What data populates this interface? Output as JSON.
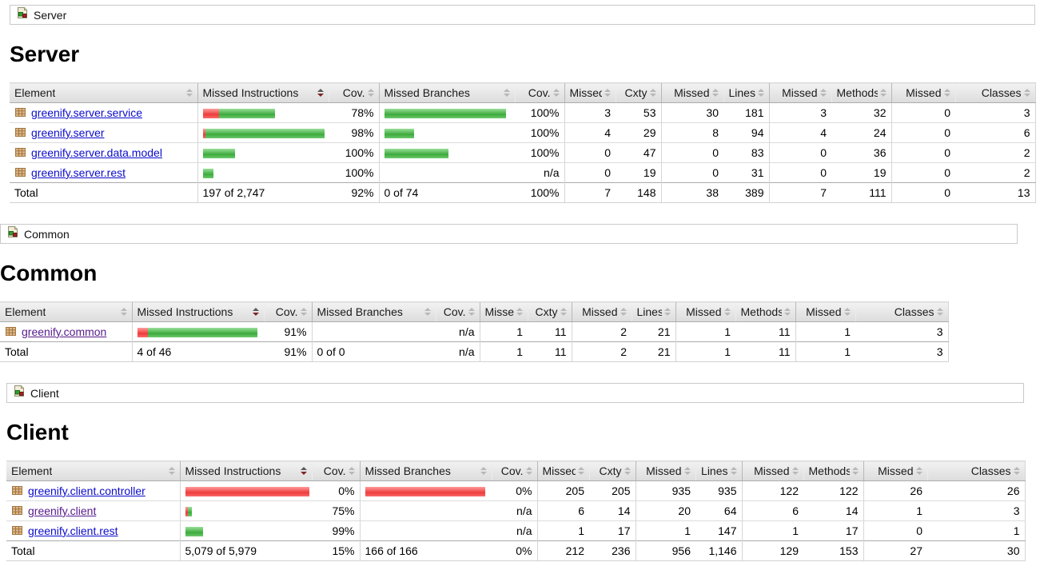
{
  "colors": {
    "covered_green": "#3dab3d",
    "missed_red": "#ee3c3c",
    "link_blue": "#0b0bcc",
    "visited_link_purple": "#551a8b",
    "header_gray": "#e4e4e4"
  },
  "icons": {
    "breadcrumb_icon": "report-icon",
    "element_icon": "package-icon",
    "header_sort_icon": "sort-arrows-icon"
  },
  "sections": [
    {
      "breadcrumb": "Server",
      "title": "Server",
      "columns": [
        {
          "label": "Element",
          "align": "left",
          "sorted": false
        },
        {
          "label": "Missed Instructions",
          "align": "left",
          "sorted": true
        },
        {
          "label": "Cov.",
          "align": "right",
          "sorted": false
        },
        {
          "label": "Missed Branches",
          "align": "left",
          "sorted": false
        },
        {
          "label": "Cov.",
          "align": "right",
          "sorted": false
        },
        {
          "label": "Missed",
          "align": "right",
          "sorted": false
        },
        {
          "label": "Cxty",
          "align": "right",
          "sorted": false
        },
        {
          "label": "Missed",
          "align": "right",
          "sorted": false
        },
        {
          "label": "Lines",
          "align": "right",
          "sorted": false
        },
        {
          "label": "Missed",
          "align": "right",
          "sorted": false
        },
        {
          "label": "Methods",
          "align": "right",
          "sorted": false
        },
        {
          "label": "Missed",
          "align": "right",
          "sorted": false
        },
        {
          "label": "Classes",
          "align": "right",
          "sorted": false
        }
      ],
      "rows": [
        {
          "element": "greenify.server.service",
          "visited": false,
          "instr_bar": {
            "missed": 20,
            "covered": 70
          },
          "instr_cov": "78%",
          "branch_bar": {
            "missed": 0,
            "covered": 152
          },
          "branch_cov": "100%",
          "cells": [
            "3",
            "53",
            "30",
            "181",
            "3",
            "32",
            "0",
            "3"
          ]
        },
        {
          "element": "greenify.server",
          "visited": false,
          "instr_bar": {
            "missed": 3,
            "covered": 149
          },
          "instr_cov": "98%",
          "branch_bar": {
            "missed": 0,
            "covered": 37
          },
          "branch_cov": "100%",
          "cells": [
            "4",
            "29",
            "8",
            "94",
            "4",
            "24",
            "0",
            "6"
          ]
        },
        {
          "element": "greenify.server.data.model",
          "visited": false,
          "instr_bar": {
            "missed": 0,
            "covered": 40
          },
          "instr_cov": "100%",
          "branch_bar": {
            "missed": 0,
            "covered": 80
          },
          "branch_cov": "100%",
          "cells": [
            "0",
            "47",
            "0",
            "83",
            "0",
            "36",
            "0",
            "2"
          ]
        },
        {
          "element": "greenify.server.rest",
          "visited": false,
          "instr_bar": {
            "missed": 0,
            "covered": 13
          },
          "instr_cov": "100%",
          "branch_bar": null,
          "branch_cov": "n/a",
          "cells": [
            "0",
            "19",
            "0",
            "31",
            "0",
            "19",
            "0",
            "2"
          ]
        }
      ],
      "total": {
        "label": "Total",
        "instr": "197 of 2,747",
        "instr_cov": "92%",
        "branch": "0 of 74",
        "branch_cov": "100%",
        "cells": [
          "7",
          "148",
          "38",
          "389",
          "7",
          "111",
          "0",
          "13"
        ]
      }
    },
    {
      "breadcrumb": "Common",
      "title": "Common",
      "columns": [
        {
          "label": "Element",
          "align": "left",
          "sorted": false
        },
        {
          "label": "Missed Instructions",
          "align": "left",
          "sorted": true
        },
        {
          "label": "Cov.",
          "align": "right",
          "sorted": false
        },
        {
          "label": "Missed Branches",
          "align": "left",
          "sorted": false
        },
        {
          "label": "Cov.",
          "align": "right",
          "sorted": false
        },
        {
          "label": "Missed",
          "align": "right",
          "sorted": false
        },
        {
          "label": "Cxty",
          "align": "right",
          "sorted": false
        },
        {
          "label": "Missed",
          "align": "right",
          "sorted": false
        },
        {
          "label": "Lines",
          "align": "right",
          "sorted": false
        },
        {
          "label": "Missed",
          "align": "right",
          "sorted": false
        },
        {
          "label": "Methods",
          "align": "right",
          "sorted": false
        },
        {
          "label": "Missed",
          "align": "right",
          "sorted": false
        },
        {
          "label": "Classes",
          "align": "right",
          "sorted": false
        }
      ],
      "rows": [
        {
          "element": "greenify.common",
          "visited": true,
          "instr_bar": {
            "missed": 13,
            "covered": 137
          },
          "instr_cov": "91%",
          "branch_bar": null,
          "branch_cov": "n/a",
          "cells": [
            "1",
            "11",
            "2",
            "21",
            "1",
            "11",
            "1",
            "3"
          ]
        }
      ],
      "total": {
        "label": "Total",
        "instr": "4 of 46",
        "instr_cov": "91%",
        "branch": "0 of 0",
        "branch_cov": "n/a",
        "cells": [
          "1",
          "11",
          "2",
          "21",
          "1",
          "11",
          "1",
          "3"
        ]
      }
    },
    {
      "breadcrumb": "Client",
      "title": "Client",
      "columns": [
        {
          "label": "Element",
          "align": "left",
          "sorted": false
        },
        {
          "label": "Missed Instructions",
          "align": "left",
          "sorted": true
        },
        {
          "label": "Cov.",
          "align": "right",
          "sorted": false
        },
        {
          "label": "Missed Branches",
          "align": "left",
          "sorted": false
        },
        {
          "label": "Cov.",
          "align": "right",
          "sorted": false
        },
        {
          "label": "Missed",
          "align": "right",
          "sorted": false
        },
        {
          "label": "Cxty",
          "align": "right",
          "sorted": false
        },
        {
          "label": "Missed",
          "align": "right",
          "sorted": false
        },
        {
          "label": "Lines",
          "align": "right",
          "sorted": false
        },
        {
          "label": "Missed",
          "align": "right",
          "sorted": false
        },
        {
          "label": "Methods",
          "align": "right",
          "sorted": false
        },
        {
          "label": "Missed",
          "align": "right",
          "sorted": false
        },
        {
          "label": "Classes",
          "align": "right",
          "sorted": false
        }
      ],
      "rows": [
        {
          "element": "greenify.client.controller",
          "visited": false,
          "instr_bar": {
            "missed": 155,
            "covered": 0
          },
          "instr_cov": "0%",
          "branch_bar": {
            "missed": 150,
            "covered": 0
          },
          "branch_cov": "0%",
          "cells": [
            "205",
            "205",
            "935",
            "935",
            "122",
            "122",
            "26",
            "26"
          ]
        },
        {
          "element": "greenify.client",
          "visited": true,
          "instr_bar": {
            "missed": 3,
            "covered": 5
          },
          "instr_cov": "75%",
          "branch_bar": null,
          "branch_cov": "n/a",
          "cells": [
            "6",
            "14",
            "20",
            "64",
            "6",
            "14",
            "1",
            "3"
          ]
        },
        {
          "element": "greenify.client.rest",
          "visited": false,
          "instr_bar": {
            "missed": 0,
            "covered": 22
          },
          "instr_cov": "99%",
          "branch_bar": null,
          "branch_cov": "n/a",
          "cells": [
            "1",
            "17",
            "1",
            "147",
            "1",
            "17",
            "0",
            "1"
          ]
        }
      ],
      "total": {
        "label": "Total",
        "instr": "5,079 of 5,979",
        "instr_cov": "15%",
        "branch": "166 of 166",
        "branch_cov": "0%",
        "cells": [
          "212",
          "236",
          "956",
          "1,146",
          "129",
          "153",
          "27",
          "30"
        ]
      }
    }
  ]
}
